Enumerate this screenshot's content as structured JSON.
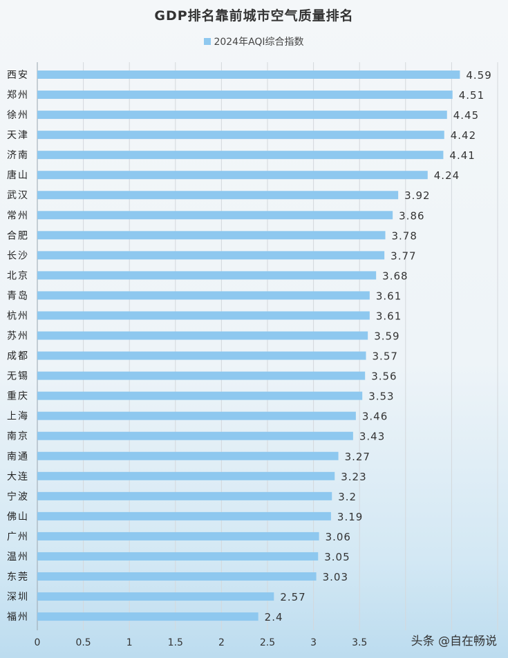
{
  "chart_data": {
    "type": "bar",
    "orientation": "horizontal",
    "title": "GDP排名靠前城市空气质量排名",
    "series": [
      {
        "name": "2024年AQI综合指数",
        "color": "#8ec8ef"
      }
    ],
    "categories": [
      "西安",
      "郑州",
      "徐州",
      "天津",
      "济南",
      "唐山",
      "武汉",
      "常州",
      "合肥",
      "长沙",
      "北京",
      "青岛",
      "杭州",
      "苏州",
      "成都",
      "无锡",
      "重庆",
      "上海",
      "南京",
      "南通",
      "大连",
      "宁波",
      "佛山",
      "广州",
      "温州",
      "东莞",
      "深圳",
      "福州"
    ],
    "values": [
      4.59,
      4.51,
      4.45,
      4.42,
      4.41,
      4.24,
      3.92,
      3.86,
      3.78,
      3.77,
      3.68,
      3.61,
      3.61,
      3.59,
      3.57,
      3.56,
      3.53,
      3.46,
      3.43,
      3.27,
      3.23,
      3.2,
      3.19,
      3.06,
      3.05,
      3.03,
      2.57,
      2.4
    ],
    "value_labels": [
      "4.59",
      "4.51",
      "4.45",
      "4.42",
      "4.41",
      "4.24",
      "3.92",
      "3.86",
      "3.78",
      "3.77",
      "3.68",
      "3.61",
      "3.61",
      "3.59",
      "3.57",
      "3.56",
      "3.53",
      "3.46",
      "3.43",
      "3.27",
      "3.23",
      "3.2",
      "3.19",
      "3.06",
      "3.05",
      "3.03",
      "2.57",
      "2.4"
    ],
    "x_ticks": [
      "0",
      "0.5",
      "1",
      "1.5",
      "2",
      "2.5",
      "3",
      "3.5"
    ],
    "xlim": [
      0,
      5
    ],
    "grid": true,
    "legend_position": "top-center"
  },
  "watermark": "头条 @自在畅说"
}
